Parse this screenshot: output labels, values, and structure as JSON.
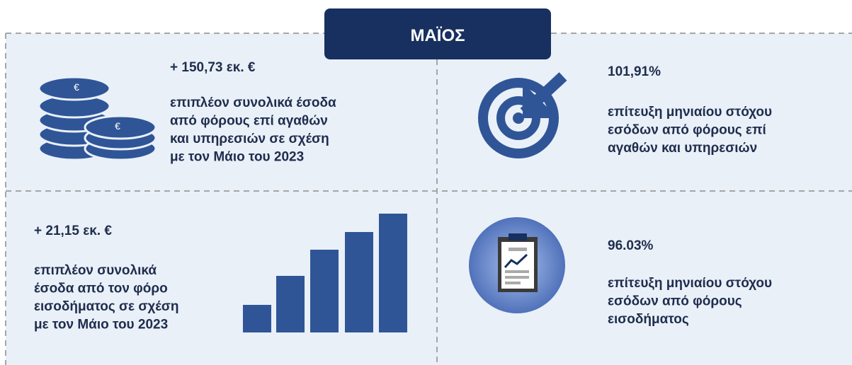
{
  "header": {
    "title": "ΜΑΪΟΣ"
  },
  "panels": [
    {
      "headline": "+ 150,73 εκ. €",
      "lines": [
        "επιπλέον συνολικά έσοδα",
        "από φόρους επί αγαθών",
        "και υπηρεσιών σε σχέση",
        "με τον Μάιο του 2023"
      ]
    },
    {
      "headline": "101,91%",
      "lines": [
        "επίτευξη μηνιαίου στόχου",
        "εσόδων από φόρους επί",
        "αγαθών και υπηρεσιών"
      ]
    },
    {
      "headline": "+ 21,15 εκ. €",
      "lines": [
        "επιπλέον συνολικά",
        "έσοδα από τον φόρο",
        "εισοδήματος σε σχέση",
        "με τον Μάιο του 2023"
      ]
    },
    {
      "headline": "96.03%",
      "lines": [
        "επίτευξη μηνιαίου στόχου",
        "εσόδων από φόρους",
        "εισοδήματος"
      ]
    }
  ]
}
